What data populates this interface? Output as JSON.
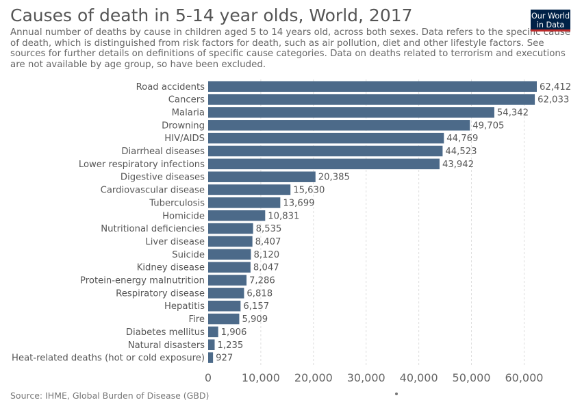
{
  "header": {
    "title": "Causes of death in 5-14 year olds, World, 2017",
    "subtitle": "Annual number of deaths by cause in children aged 5 to 14 years old, across both sexes. Data refers to the specific cause of death, which is distinguished from risk factors for death, such as air pollution, diet and other lifestyle factors. See sources for further details on definitions of specific cause categories. Data on deaths related to terrorism and executions are not available by age group, so have been excluded.",
    "logo_line1": "Our World",
    "logo_line2": "in Data"
  },
  "footer": {
    "source": "Source: IHME, Global Burden of Disease (GBD)"
  },
  "colors": {
    "bar": "#4c6a89",
    "grid": "#dddddd",
    "logo_bg": "#002147",
    "logo_accent": "#be2b2b"
  },
  "chart_data": {
    "type": "bar",
    "orientation": "horizontal",
    "title": "Causes of death in 5-14 year olds, World, 2017",
    "xlim": [
      0,
      62412
    ],
    "x_ticks": [
      0,
      10000,
      20000,
      30000,
      40000,
      50000,
      60000
    ],
    "x_tick_labels": [
      "0",
      "10,000",
      "20,000",
      "30,000",
      "40,000",
      "50,000",
      "60,000"
    ],
    "grid": true,
    "categories": [
      "Road accidents",
      "Cancers",
      "Malaria",
      "Drowning",
      "HIV/AIDS",
      "Diarrheal diseases",
      "Lower respiratory infections",
      "Digestive diseases",
      "Cardiovascular disease",
      "Tuberculosis",
      "Homicide",
      "Nutritional deficiencies",
      "Liver disease",
      "Suicide",
      "Kidney disease",
      "Protein-energy malnutrition",
      "Respiratory disease",
      "Hepatitis",
      "Fire",
      "Diabetes mellitus",
      "Natural disasters",
      "Heat-related deaths (hot or cold exposure)"
    ],
    "values": [
      62412,
      62033,
      54342,
      49705,
      44769,
      44523,
      43942,
      20385,
      15630,
      13699,
      10831,
      8535,
      8407,
      8120,
      8047,
      7286,
      6818,
      6157,
      5909,
      1906,
      1235,
      927
    ],
    "value_labels": [
      "62,412",
      "62,033",
      "54,342",
      "49,705",
      "44,769",
      "44,523",
      "43,942",
      "20,385",
      "15,630",
      "13,699",
      "10,831",
      "8,535",
      "8,407",
      "8,120",
      "8,047",
      "7,286",
      "6,818",
      "6,157",
      "5,909",
      "1,906",
      "1,235",
      "927"
    ]
  }
}
